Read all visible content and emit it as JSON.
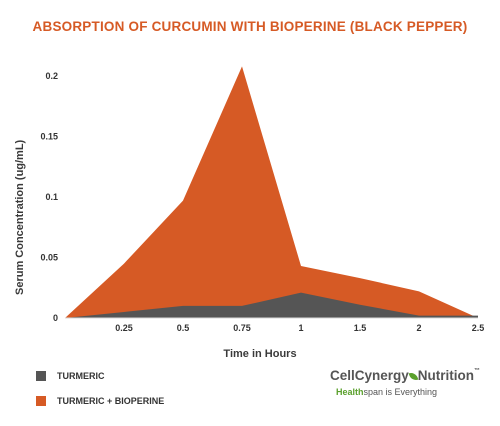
{
  "chart_data": {
    "type": "area",
    "title": "ABSORPTION OF CURCUMIN WITH BIOPERINE (BLACK PEPPER)",
    "xlabel": "Time in Hours",
    "ylabel": "Serum Concentration (ug/mL)",
    "x": [
      "",
      "0.25",
      "0.5",
      "0.75",
      "1",
      "1.5",
      "2",
      "2.5"
    ],
    "ylim": [
      0,
      0.21
    ],
    "yticks": [
      "0",
      "0.05",
      "0.1",
      "0.15",
      "0.2"
    ],
    "series": [
      {
        "name": "TURMERIC + BIOPERINE",
        "color": "#d65a25",
        "values": [
          0,
          0.045,
          0.097,
          0.208,
          0.043,
          0.033,
          0.022,
          0
        ]
      },
      {
        "name": "TURMERIC",
        "color": "#555555",
        "values": [
          0,
          0.005,
          0.01,
          0.01,
          0.021,
          0.011,
          0.002,
          0.002
        ]
      }
    ],
    "grid": false,
    "legend": "bottom-left"
  },
  "brand": {
    "name_part1": "CellCynergy",
    "name_part2": "Nutrition",
    "tm": "™",
    "tagline_part1": "Health",
    "tagline_part2": "span is Everything"
  }
}
